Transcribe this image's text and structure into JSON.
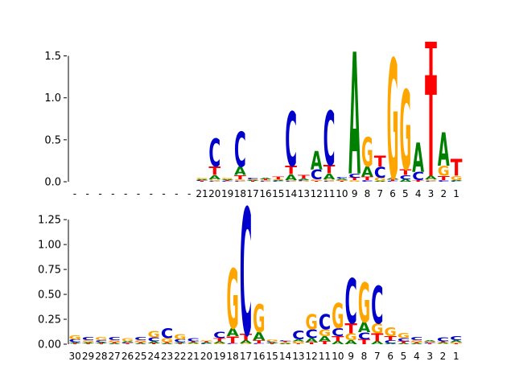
{
  "colors": {
    "A": "#008000",
    "C": "#0000cc",
    "G": "#ffa500",
    "T": "#ff0000"
  },
  "chart_data": [
    {
      "type": "sequence-logo",
      "ylim": [
        0,
        1.62
      ],
      "yticks": [
        0.0,
        0.5,
        1.0,
        1.5
      ],
      "tick_labels": [
        "0.0",
        "0.5",
        "1.0",
        "1.5"
      ],
      "positions": [
        "-",
        "-",
        "-",
        "-",
        "-",
        "-",
        "-",
        "-",
        "-",
        "-",
        "21",
        "20",
        "19",
        "18",
        "17",
        "16",
        "15",
        "14",
        "13",
        "12",
        "11",
        "10",
        "9",
        "8",
        "7",
        "6",
        "5",
        "4",
        "3",
        "2",
        "1"
      ],
      "stacks": [
        [],
        [],
        [],
        [],
        [],
        [],
        [],
        [],
        [],
        [],
        [
          [
            "T",
            0.01
          ],
          [
            "C",
            0.01
          ],
          [
            "A",
            0.01
          ],
          [
            "G",
            0.02
          ]
        ],
        [
          [
            "C",
            0.01
          ],
          [
            "G",
            0.02
          ],
          [
            "A",
            0.05
          ],
          [
            "T",
            0.1
          ],
          [
            "C",
            0.33
          ]
        ],
        [
          [
            "C",
            0.01
          ],
          [
            "T",
            0.01
          ],
          [
            "A",
            0.01
          ],
          [
            "G",
            0.02
          ]
        ],
        [
          [
            "C",
            0.01
          ],
          [
            "G",
            0.02
          ],
          [
            "T",
            0.05
          ],
          [
            "A",
            0.1
          ],
          [
            "C",
            0.42
          ]
        ],
        [
          [
            "T",
            0.01
          ],
          [
            "A",
            0.01
          ],
          [
            "G",
            0.01
          ],
          [
            "C",
            0.02
          ]
        ],
        [
          [
            "C",
            0.01
          ],
          [
            "G",
            0.01
          ],
          [
            "T",
            0.01
          ],
          [
            "A",
            0.02
          ]
        ],
        [
          [
            "C",
            0.01
          ],
          [
            "A",
            0.01
          ],
          [
            "G",
            0.01
          ],
          [
            "T",
            0.03
          ]
        ],
        [
          [
            "C",
            0.01
          ],
          [
            "G",
            0.01
          ],
          [
            "A",
            0.07
          ],
          [
            "T",
            0.1
          ],
          [
            "C",
            0.65
          ]
        ],
        [
          [
            "G",
            0.01
          ],
          [
            "C",
            0.01
          ],
          [
            "A",
            0.02
          ],
          [
            "T",
            0.04
          ]
        ],
        [
          [
            "T",
            0.01
          ],
          [
            "G",
            0.02
          ],
          [
            "C",
            0.12
          ],
          [
            "A",
            0.22
          ]
        ],
        [
          [
            "C",
            0.01
          ],
          [
            "G",
            0.02
          ],
          [
            "A",
            0.07
          ],
          [
            "T",
            0.1
          ],
          [
            "C",
            0.65
          ]
        ],
        [
          [
            "T",
            0.01
          ],
          [
            "G",
            0.01
          ],
          [
            "A",
            0.02
          ],
          [
            "C",
            0.02
          ]
        ],
        [
          [
            "G",
            0.02
          ],
          [
            "T",
            0.03
          ],
          [
            "C",
            0.05
          ],
          [
            "A",
            1.45
          ]
        ],
        [
          [
            "C",
            0.02
          ],
          [
            "T",
            0.04
          ],
          [
            "A",
            0.12
          ],
          [
            "G",
            0.35
          ]
        ],
        [
          [
            "A",
            0.01
          ],
          [
            "G",
            0.04
          ],
          [
            "C",
            0.13
          ],
          [
            "T",
            0.13
          ]
        ],
        [
          [
            "C",
            0.01
          ],
          [
            "T",
            0.02
          ],
          [
            "A",
            0.02
          ],
          [
            "G",
            1.42
          ]
        ],
        [
          [
            "A",
            0.03
          ],
          [
            "C",
            0.05
          ],
          [
            "T",
            0.07
          ],
          [
            "G",
            0.95
          ]
        ],
        [
          [
            "T",
            0.02
          ],
          [
            "C",
            0.1
          ],
          [
            "A",
            0.35
          ]
        ],
        [
          [
            "C",
            0.01
          ],
          [
            "G",
            0.02
          ],
          [
            "A",
            0.04
          ],
          [
            "T",
            1.2
          ],
          [
            "T",
            0.4
          ]
        ],
        [
          [
            "C",
            0.02
          ],
          [
            "T",
            0.05
          ],
          [
            "G",
            0.12
          ],
          [
            "A",
            0.4
          ]
        ],
        [
          [
            "C",
            0.01
          ],
          [
            "A",
            0.01
          ],
          [
            "G",
            0.05
          ],
          [
            "T",
            0.2
          ]
        ]
      ]
    },
    {
      "type": "sequence-logo",
      "ylim": [
        0,
        1.38
      ],
      "yticks": [
        0.0,
        0.25,
        0.5,
        0.75,
        1.0,
        1.25
      ],
      "tick_labels": [
        "0.00",
        "0.25",
        "0.50",
        "0.75",
        "1.00",
        "1.25"
      ],
      "positions": [
        "30",
        "29",
        "28",
        "27",
        "26",
        "25",
        "24",
        "23",
        "22",
        "21",
        "20",
        "19",
        "18",
        "17",
        "16",
        "15",
        "14",
        "13",
        "12",
        "11",
        "10",
        "9",
        "8",
        "7",
        "6",
        "5",
        "4",
        "3",
        "2",
        "1"
      ],
      "stacks": [
        [
          [
            "T",
            0.01
          ],
          [
            "A",
            0.01
          ],
          [
            "C",
            0.03
          ],
          [
            "G",
            0.04
          ]
        ],
        [
          [
            "T",
            0.01
          ],
          [
            "A",
            0.01
          ],
          [
            "G",
            0.02
          ],
          [
            "C",
            0.03
          ]
        ],
        [
          [
            "T",
            0.01
          ],
          [
            "A",
            0.01
          ],
          [
            "C",
            0.02
          ],
          [
            "G",
            0.03
          ]
        ],
        [
          [
            "A",
            0.01
          ],
          [
            "T",
            0.01
          ],
          [
            "G",
            0.02
          ],
          [
            "C",
            0.03
          ]
        ],
        [
          [
            "T",
            0.01
          ],
          [
            "C",
            0.01
          ],
          [
            "A",
            0.01
          ],
          [
            "G",
            0.03
          ]
        ],
        [
          [
            "A",
            0.01
          ],
          [
            "T",
            0.01
          ],
          [
            "G",
            0.02
          ],
          [
            "C",
            0.03
          ]
        ],
        [
          [
            "T",
            0.01
          ],
          [
            "A",
            0.02
          ],
          [
            "C",
            0.04
          ],
          [
            "G",
            0.06
          ]
        ],
        [
          [
            "A",
            0.01
          ],
          [
            "T",
            0.01
          ],
          [
            "G",
            0.04
          ],
          [
            "C",
            0.1
          ]
        ],
        [
          [
            "T",
            0.01
          ],
          [
            "A",
            0.01
          ],
          [
            "C",
            0.03
          ],
          [
            "G",
            0.05
          ]
        ],
        [
          [
            "G",
            0.01
          ],
          [
            "A",
            0.01
          ],
          [
            "T",
            0.01
          ],
          [
            "C",
            0.03
          ]
        ],
        [
          [
            "C",
            0.01
          ],
          [
            "A",
            0.01
          ],
          [
            "T",
            0.01
          ],
          [
            "G",
            0.01
          ]
        ],
        [
          [
            "G",
            0.01
          ],
          [
            "A",
            0.02
          ],
          [
            "T",
            0.03
          ],
          [
            "C",
            0.06
          ]
        ],
        [
          [
            "C",
            0.01
          ],
          [
            "T",
            0.07
          ],
          [
            "A",
            0.08
          ],
          [
            "G",
            0.6
          ]
        ],
        [
          [
            "G",
            0.01
          ],
          [
            "A",
            0.03
          ],
          [
            "T",
            0.06
          ],
          [
            "C",
            1.27
          ]
        ],
        [
          [
            "C",
            0.01
          ],
          [
            "T",
            0.03
          ],
          [
            "A",
            0.08
          ],
          [
            "G",
            0.28
          ]
        ],
        [
          [
            "T",
            0.01
          ],
          [
            "A",
            0.01
          ],
          [
            "C",
            0.01
          ],
          [
            "G",
            0.02
          ]
        ],
        [
          [
            "A",
            0.01
          ],
          [
            "G",
            0.01
          ],
          [
            "T",
            0.01
          ],
          [
            "C",
            0.01
          ]
        ],
        [
          [
            "T",
            0.01
          ],
          [
            "G",
            0.02
          ],
          [
            "A",
            0.02
          ],
          [
            "C",
            0.09
          ]
        ],
        [
          [
            "T",
            0.02
          ],
          [
            "A",
            0.04
          ],
          [
            "C",
            0.09
          ],
          [
            "G",
            0.15
          ]
        ],
        [
          [
            "T",
            0.03
          ],
          [
            "A",
            0.05
          ],
          [
            "G",
            0.07
          ],
          [
            "C",
            0.15
          ]
        ],
        [
          [
            "A",
            0.03
          ],
          [
            "T",
            0.05
          ],
          [
            "C",
            0.08
          ],
          [
            "G",
            0.25
          ]
        ],
        [
          [
            "A",
            0.04
          ],
          [
            "G",
            0.07
          ],
          [
            "T",
            0.1
          ],
          [
            "C",
            0.45
          ]
        ],
        [
          [
            "T",
            0.05
          ],
          [
            "C",
            0.07
          ],
          [
            "A",
            0.1
          ],
          [
            "G",
            0.4
          ]
        ],
        [
          [
            "A",
            0.03
          ],
          [
            "T",
            0.08
          ],
          [
            "G",
            0.1
          ],
          [
            "C",
            0.38
          ]
        ],
        [
          [
            "A",
            0.01
          ],
          [
            "C",
            0.03
          ],
          [
            "T",
            0.04
          ],
          [
            "G",
            0.09
          ]
        ],
        [
          [
            "A",
            0.01
          ],
          [
            "T",
            0.02
          ],
          [
            "C",
            0.03
          ],
          [
            "G",
            0.05
          ]
        ],
        [
          [
            "A",
            0.01
          ],
          [
            "T",
            0.01
          ],
          [
            "G",
            0.02
          ],
          [
            "C",
            0.03
          ]
        ],
        [
          [
            "T",
            0.01
          ],
          [
            "C",
            0.01
          ],
          [
            "G",
            0.01
          ],
          [
            "A",
            0.01
          ]
        ],
        [
          [
            "G",
            0.01
          ],
          [
            "A",
            0.01
          ],
          [
            "T",
            0.01
          ],
          [
            "C",
            0.04
          ]
        ],
        [
          [
            "T",
            0.01
          ],
          [
            "G",
            0.01
          ],
          [
            "A",
            0.02
          ],
          [
            "C",
            0.04
          ]
        ]
      ]
    }
  ]
}
